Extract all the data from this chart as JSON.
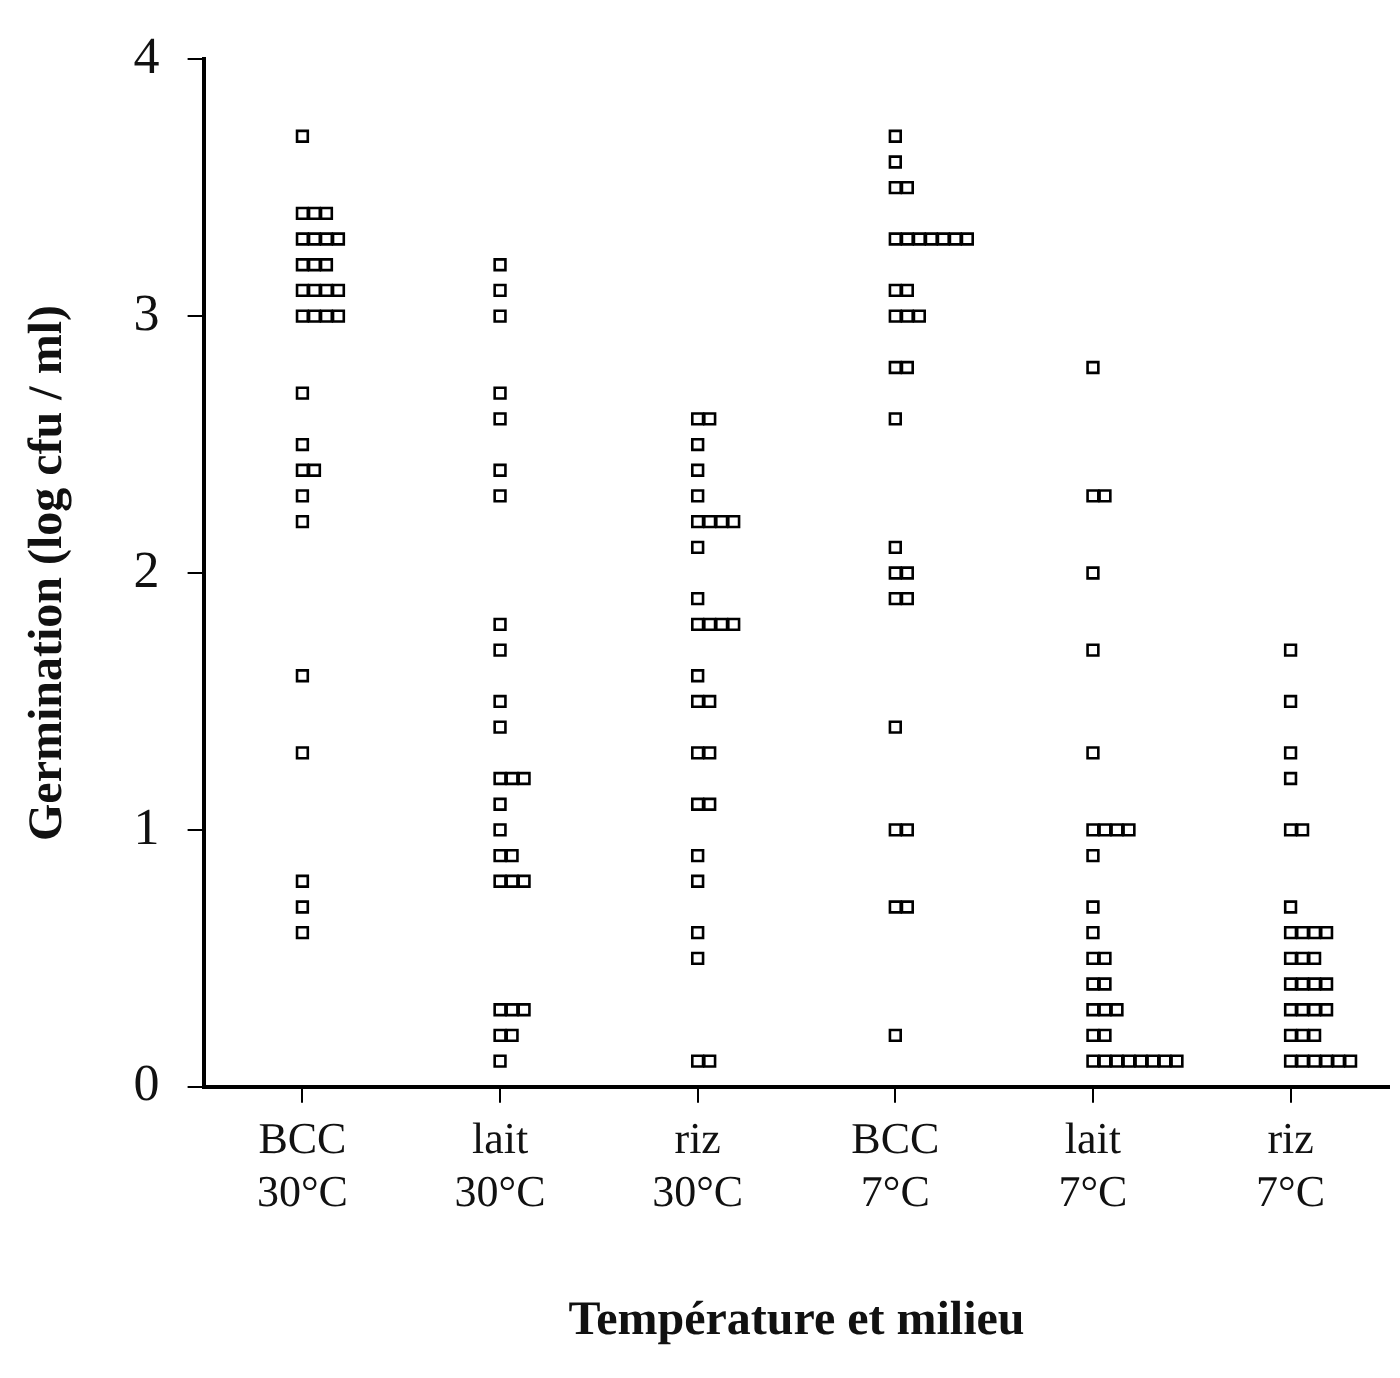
{
  "chart_data": {
    "type": "scatter",
    "xlabel": "Température et milieu",
    "ylabel": "Germination (log cfu / ml)",
    "categories": [
      "BCC 30°C",
      "lait 30°C",
      "riz 30°C",
      "BCC 7°C",
      "lait 7°C",
      "riz 7°C"
    ],
    "ylim": [
      0,
      4
    ],
    "yticks": [
      0,
      1,
      2,
      3,
      4
    ],
    "grid": false,
    "legend": false,
    "marker": "square",
    "series": [
      {
        "color": "#000000",
        "x": [
          "BCC 30°C",
          "BCC 30°C",
          "BCC 30°C",
          "BCC 30°C",
          "BCC 30°C",
          "BCC 30°C",
          "BCC 30°C",
          "BCC 30°C",
          "BCC 30°C",
          "BCC 30°C",
          "BCC 30°C",
          "BCC 30°C",
          "BCC 30°C",
          "BCC 30°C",
          "BCC 30°C",
          "BCC 30°C",
          "BCC 30°C",
          "BCC 30°C",
          "BCC 30°C",
          "BCC 30°C",
          "BCC 30°C",
          "BCC 30°C",
          "BCC 30°C",
          "BCC 30°C",
          "BCC 30°C",
          "BCC 30°C",
          "BCC 30°C",
          "BCC 30°C",
          "BCC 30°C",
          "BCC 30°C"
        ],
        "values": [
          3.7,
          3.4,
          3.4,
          3.4,
          3.3,
          3.3,
          3.3,
          3.3,
          3.2,
          3.2,
          3.2,
          3.1,
          3.1,
          3.1,
          3.1,
          3.0,
          3.0,
          3.0,
          3.0,
          2.7,
          2.5,
          2.4,
          2.4,
          2.3,
          2.2,
          1.6,
          1.3,
          0.8,
          0.7,
          0.6
        ]
      },
      {
        "color": "#000000",
        "x": [
          "lait 30°C",
          "lait 30°C",
          "lait 30°C",
          "lait 30°C",
          "lait 30°C",
          "lait 30°C",
          "lait 30°C",
          "lait 30°C",
          "lait 30°C",
          "lait 30°C",
          "lait 30°C",
          "lait 30°C",
          "lait 30°C",
          "lait 30°C",
          "lait 30°C",
          "lait 30°C",
          "lait 30°C",
          "lait 30°C",
          "lait 30°C",
          "lait 30°C",
          "lait 30°C",
          "lait 30°C",
          "lait 30°C",
          "lait 30°C",
          "lait 30°C",
          "lait 30°C",
          "lait 30°C"
        ],
        "values": [
          3.2,
          3.1,
          3.0,
          2.7,
          2.6,
          2.4,
          2.3,
          1.8,
          1.7,
          1.5,
          1.4,
          1.2,
          1.2,
          1.2,
          1.1,
          1.0,
          0.9,
          0.9,
          0.8,
          0.8,
          0.8,
          0.3,
          0.3,
          0.3,
          0.2,
          0.2,
          0.1
        ]
      },
      {
        "color": "#000000",
        "x": [
          "riz 30°C",
          "riz 30°C",
          "riz 30°C",
          "riz 30°C",
          "riz 30°C",
          "riz 30°C",
          "riz 30°C",
          "riz 30°C",
          "riz 30°C",
          "riz 30°C",
          "riz 30°C",
          "riz 30°C",
          "riz 30°C",
          "riz 30°C",
          "riz 30°C",
          "riz 30°C",
          "riz 30°C",
          "riz 30°C",
          "riz 30°C",
          "riz 30°C",
          "riz 30°C",
          "riz 30°C",
          "riz 30°C",
          "riz 30°C",
          "riz 30°C",
          "riz 30°C",
          "riz 30°C",
          "riz 30°C"
        ],
        "values": [
          2.6,
          2.6,
          2.5,
          2.4,
          2.3,
          2.2,
          2.2,
          2.2,
          2.2,
          2.1,
          1.9,
          1.8,
          1.8,
          1.8,
          1.8,
          1.6,
          1.5,
          1.5,
          1.3,
          1.3,
          1.1,
          1.1,
          0.9,
          0.8,
          0.6,
          0.5,
          0.1,
          0.1
        ]
      },
      {
        "color": "#000000",
        "x": [
          "BCC 7°C",
          "BCC 7°C",
          "BCC 7°C",
          "BCC 7°C",
          "BCC 7°C",
          "BCC 7°C",
          "BCC 7°C",
          "BCC 7°C",
          "BCC 7°C",
          "BCC 7°C",
          "BCC 7°C",
          "BCC 7°C",
          "BCC 7°C",
          "BCC 7°C",
          "BCC 7°C",
          "BCC 7°C",
          "BCC 7°C",
          "BCC 7°C",
          "BCC 7°C",
          "BCC 7°C",
          "BCC 7°C",
          "BCC 7°C",
          "BCC 7°C",
          "BCC 7°C",
          "BCC 7°C",
          "BCC 7°C",
          "BCC 7°C",
          "BCC 7°C",
          "BCC 7°C",
          "BCC 7°C"
        ],
        "values": [
          3.7,
          3.6,
          3.5,
          3.5,
          3.3,
          3.3,
          3.3,
          3.3,
          3.3,
          3.3,
          3.3,
          3.1,
          3.1,
          3.0,
          3.0,
          3.0,
          2.8,
          2.8,
          2.6,
          2.1,
          2.0,
          2.0,
          1.9,
          1.9,
          1.4,
          1.0,
          1.0,
          0.7,
          0.7,
          0.2
        ]
      },
      {
        "color": "#000000",
        "x": [
          "lait 7°C",
          "lait 7°C",
          "lait 7°C",
          "lait 7°C",
          "lait 7°C",
          "lait 7°C",
          "lait 7°C",
          "lait 7°C",
          "lait 7°C",
          "lait 7°C",
          "lait 7°C",
          "lait 7°C",
          "lait 7°C",
          "lait 7°C",
          "lait 7°C",
          "lait 7°C",
          "lait 7°C",
          "lait 7°C",
          "lait 7°C",
          "lait 7°C",
          "lait 7°C",
          "lait 7°C",
          "lait 7°C",
          "lait 7°C",
          "lait 7°C",
          "lait 7°C",
          "lait 7°C",
          "lait 7°C",
          "lait 7°C",
          "lait 7°C"
        ],
        "values": [
          2.8,
          2.3,
          2.3,
          2.0,
          1.7,
          1.3,
          1.0,
          1.0,
          1.0,
          1.0,
          0.9,
          0.7,
          0.6,
          0.5,
          0.5,
          0.4,
          0.4,
          0.3,
          0.3,
          0.3,
          0.2,
          0.2,
          0.1,
          0.1,
          0.1,
          0.1,
          0.1,
          0.1,
          0.1,
          0.1
        ]
      },
      {
        "color": "#000000",
        "x": [
          "riz 7°C",
          "riz 7°C",
          "riz 7°C",
          "riz 7°C",
          "riz 7°C",
          "riz 7°C",
          "riz 7°C",
          "riz 7°C",
          "riz 7°C",
          "riz 7°C",
          "riz 7°C",
          "riz 7°C",
          "riz 7°C",
          "riz 7°C",
          "riz 7°C",
          "riz 7°C",
          "riz 7°C",
          "riz 7°C",
          "riz 7°C",
          "riz 7°C",
          "riz 7°C",
          "riz 7°C",
          "riz 7°C",
          "riz 7°C",
          "riz 7°C",
          "riz 7°C",
          "riz 7°C",
          "riz 7°C",
          "riz 7°C",
          "riz 7°C",
          "riz 7°C"
        ],
        "values": [
          1.7,
          1.5,
          1.3,
          1.2,
          1.0,
          1.0,
          0.7,
          0.6,
          0.6,
          0.6,
          0.6,
          0.5,
          0.5,
          0.5,
          0.4,
          0.4,
          0.4,
          0.4,
          0.3,
          0.3,
          0.3,
          0.3,
          0.2,
          0.2,
          0.2,
          0.1,
          0.1,
          0.1,
          0.1,
          0.1,
          0.1
        ]
      }
    ]
  }
}
